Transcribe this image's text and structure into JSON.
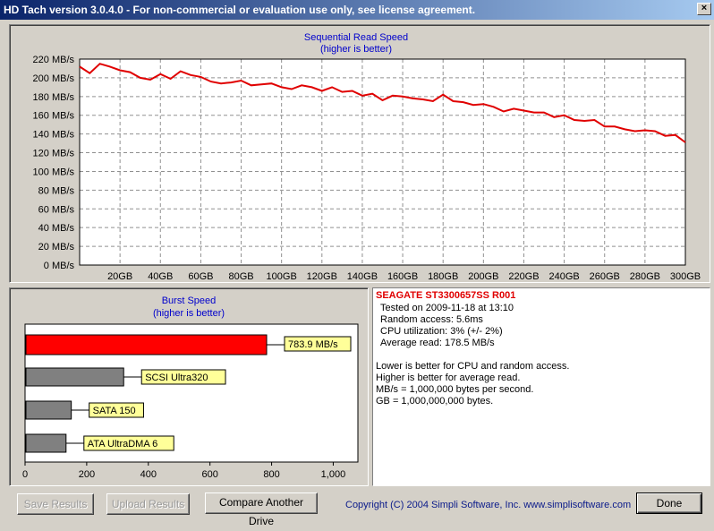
{
  "window": {
    "title": "HD Tach version 3.0.4.0  - For non-commercial or evaluation use only, see license agreement."
  },
  "seq_chart": {
    "title": "Sequential Read Speed",
    "subtitle": "(higher is better)"
  },
  "burst_chart": {
    "title": "Burst Speed",
    "subtitle": "(higher is better)"
  },
  "chart_data": [
    {
      "type": "line",
      "title": "Sequential Read Speed",
      "subtitle": "(higher is better)",
      "y_ticks": [
        "0 MB/s",
        "20 MB/s",
        "40 MB/s",
        "60 MB/s",
        "80 MB/s",
        "100 MB/s",
        "120 MB/s",
        "140 MB/s",
        "160 MB/s",
        "180 MB/s",
        "200 MB/s",
        "220 MB/s"
      ],
      "x_ticks": [
        "20GB",
        "40GB",
        "60GB",
        "80GB",
        "100GB",
        "120GB",
        "140GB",
        "160GB",
        "180GB",
        "200GB",
        "220GB",
        "240GB",
        "260GB",
        "280GB",
        "300GB"
      ],
      "xlim": [
        0,
        300
      ],
      "ylim": [
        0,
        220
      ],
      "grid": true,
      "line_color": "#e00000",
      "series": [
        {
          "x": [
            0,
            5,
            10,
            15,
            20,
            25,
            30,
            35,
            40,
            45,
            50,
            55,
            60,
            65,
            70,
            75,
            80,
            85,
            90,
            95,
            100,
            105,
            110,
            115,
            120,
            125,
            130,
            135,
            140,
            145,
            150,
            155,
            160,
            165,
            170,
            175,
            180,
            185,
            190,
            195,
            200,
            205,
            210,
            215,
            220,
            225,
            230,
            235,
            240,
            245,
            250,
            255,
            260,
            265,
            270,
            275,
            280,
            285,
            290,
            295,
            300
          ],
          "y": [
            212,
            205,
            215,
            212,
            208,
            206,
            200,
            198,
            204,
            199,
            207,
            203,
            201,
            196,
            194,
            195,
            197,
            192,
            193,
            194,
            190,
            188,
            192,
            190,
            186,
            190,
            185,
            186,
            181,
            183,
            176,
            181,
            180,
            178,
            177,
            175,
            182,
            175,
            174,
            171,
            172,
            169,
            164,
            167,
            165,
            163,
            163,
            158,
            160,
            155,
            154,
            155,
            148,
            148,
            145,
            143,
            144,
            143,
            138,
            139,
            131
          ]
        }
      ]
    },
    {
      "type": "bar",
      "title": "Burst Speed",
      "subtitle": "(higher is better)",
      "orientation": "horizontal",
      "categories": [
        "783.9 MB/s",
        "SCSI Ultra320",
        "SATA 150",
        "ATA UltraDMA 6"
      ],
      "values": [
        783.9,
        320,
        150,
        133
      ],
      "colors": [
        "#ff0000",
        "#808080",
        "#808080",
        "#808080"
      ],
      "x_ticks": [
        "0",
        "200",
        "400",
        "600",
        "800",
        "1,000"
      ],
      "xlim": [
        0,
        1080
      ]
    }
  ],
  "info": {
    "drive_name": "SEAGATE  ST3300657SS  R001",
    "tested_on": "Tested on 2009-11-18 at 13:10",
    "random_access": "Random access: 5.6ms",
    "cpu": "CPU utilization: 3% (+/- 2%)",
    "average_read": "Average read: 178.5 MB/s",
    "note1": "Lower is better for CPU and random access.",
    "note2": "Higher is better for average read.",
    "note3": "MB/s = 1,000,000 bytes per second.",
    "note4": "GB = 1,000,000,000 bytes."
  },
  "buttons": {
    "save": "Save Results",
    "upload": "Upload Results",
    "compare": "Compare Another Drive",
    "done": "Done"
  },
  "footer": {
    "copyright": "Copyright (C) 2004 Simpli Software, Inc. www.simplisoftware.com"
  }
}
